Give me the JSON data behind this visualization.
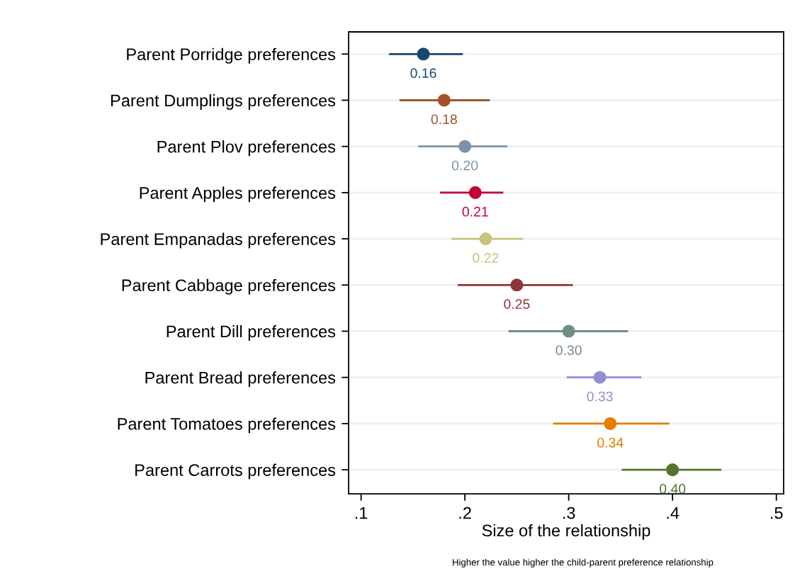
{
  "chart_data": {
    "type": "scatter",
    "orientation": "horizontal",
    "categories": [
      "Parent Porridge preferences",
      "Parent Dumplings preferences",
      "Parent Plov preferences",
      "Parent Apples preferences",
      "Parent Empanadas preferences",
      "Parent Cabbage preferences",
      "Parent Dill preferences",
      "Parent Bread preferences",
      "Parent Tomatoes preferences",
      "Parent Carrots preferences"
    ],
    "values": [
      0.16,
      0.18,
      0.2,
      0.21,
      0.22,
      0.25,
      0.3,
      0.33,
      0.34,
      0.4
    ],
    "value_labels": [
      "0.16",
      "0.18",
      "0.20",
      "0.21",
      "0.22",
      "0.25",
      "0.30",
      "0.33",
      "0.34",
      "0.40"
    ],
    "errors": [
      [
        0.127,
        0.198
      ],
      [
        0.137,
        0.224
      ],
      [
        0.155,
        0.241
      ],
      [
        0.176,
        0.237
      ],
      [
        0.187,
        0.256
      ],
      [
        0.193,
        0.304
      ],
      [
        0.242,
        0.357
      ],
      [
        0.298,
        0.37
      ],
      [
        0.285,
        0.397
      ],
      [
        0.351,
        0.447
      ]
    ],
    "colors": [
      "#1a476f",
      "#a0522d",
      "#7b92a8",
      "#c10534",
      "#cac27e",
      "#90353b",
      "#6e8e84",
      "#938dd2",
      "#e37e00",
      "#55752f"
    ],
    "xlim": [
      0.088,
      0.507
    ],
    "xticks": [
      {
        "value": 0.1,
        "label": ".1"
      },
      {
        "value": 0.2,
        "label": ".2"
      },
      {
        "value": 0.3,
        "label": ".3"
      },
      {
        "value": 0.4,
        "label": ".4"
      },
      {
        "value": 0.5,
        "label": ".5"
      }
    ],
    "xlabel": "Size of the relationship",
    "annotations": [
      "Higher the value higher the child-parent preference relationship"
    ],
    "grid": "y",
    "marker": "circle",
    "legend": false
  }
}
